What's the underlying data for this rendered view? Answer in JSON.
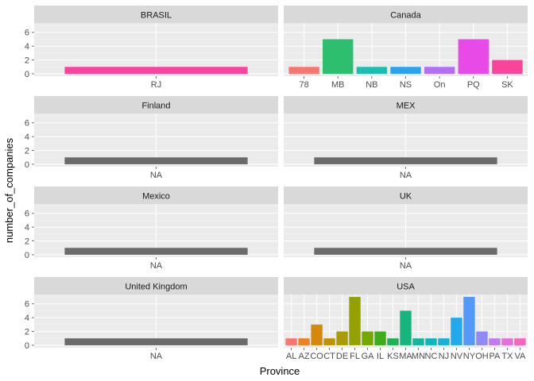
{
  "chart_data": {
    "type": "bar",
    "title": "",
    "xlabel": "Province",
    "ylabel": "number_of_companies",
    "ylim": [
      -0.35,
      7.35
    ],
    "yticks": [
      0,
      2,
      4,
      6
    ],
    "facets": [
      {
        "name": "BRASIL",
        "bars": [
          {
            "category": "RJ",
            "value": 1,
            "color": "#F8449B"
          }
        ]
      },
      {
        "name": "Canada",
        "bars": [
          {
            "category": "78",
            "value": 1,
            "color": "#F8766D"
          },
          {
            "category": "MB",
            "value": 5,
            "color": "#2DBF6E"
          },
          {
            "category": "NB",
            "value": 1,
            "color": "#1CBDAF"
          },
          {
            "category": "NS",
            "value": 1,
            "color": "#29A3F0"
          },
          {
            "category": "On",
            "value": 1,
            "color": "#B26EF6"
          },
          {
            "category": "PQ",
            "value": 5,
            "color": "#E84AE8"
          },
          {
            "category": "SK",
            "value": 2,
            "color": "#F8449B"
          }
        ]
      },
      {
        "name": "Finland",
        "bars": [
          {
            "category": "NA",
            "value": 1,
            "color": "#6B6B6B"
          }
        ]
      },
      {
        "name": "MEX",
        "bars": [
          {
            "category": "NA",
            "value": 1,
            "color": "#6B6B6B"
          }
        ]
      },
      {
        "name": "Mexico",
        "bars": [
          {
            "category": "NA",
            "value": 1,
            "color": "#6B6B6B"
          }
        ]
      },
      {
        "name": "UK",
        "bars": [
          {
            "category": "NA",
            "value": 1,
            "color": "#6B6B6B"
          }
        ]
      },
      {
        "name": "United Kingdom",
        "bars": [
          {
            "category": "NA",
            "value": 1,
            "color": "#6B6B6B"
          }
        ]
      },
      {
        "name": "USA",
        "bars": [
          {
            "category": "AL",
            "value": 1,
            "color": "#F8766D"
          },
          {
            "category": "AZ",
            "value": 1,
            "color": "#EE8120"
          },
          {
            "category": "CO",
            "value": 3,
            "color": "#D4890A"
          },
          {
            "category": "CT",
            "value": 1,
            "color": "#BE9300"
          },
          {
            "category": "DE",
            "value": 2,
            "color": "#A89C00"
          },
          {
            "category": "FL",
            "value": 7,
            "color": "#93A200"
          },
          {
            "category": "GA",
            "value": 2,
            "color": "#72A800"
          },
          {
            "category": "IL",
            "value": 2,
            "color": "#3DAD1A"
          },
          {
            "category": "KS",
            "value": 1,
            "color": "#1EB254"
          },
          {
            "category": "MA",
            "value": 5,
            "color": "#17B57E"
          },
          {
            "category": "MN",
            "value": 1,
            "color": "#12B79E"
          },
          {
            "category": "NC",
            "value": 1,
            "color": "#0BB7BD"
          },
          {
            "category": "NJ",
            "value": 1,
            "color": "#14B2D6"
          },
          {
            "category": "NV",
            "value": 4,
            "color": "#22A9EC"
          },
          {
            "category": "NY",
            "value": 7,
            "color": "#5499FA"
          },
          {
            "category": "OH",
            "value": 2,
            "color": "#8F89FA"
          },
          {
            "category": "PA",
            "value": 1,
            "color": "#C07BF4"
          },
          {
            "category": "TX",
            "value": 1,
            "color": "#E46FDE"
          },
          {
            "category": "VA",
            "value": 1,
            "color": "#F864BE"
          }
        ]
      }
    ]
  },
  "colors": {
    "panel_bg": "#EBEBEB",
    "strip_bg": "#D9D9D9",
    "grid_major": "#FFFFFF",
    "grid_minor": "#F4F4F4",
    "axis_text": "#4D4D4D",
    "strip_text": "#1A1A1A",
    "title_text": "#000000"
  }
}
